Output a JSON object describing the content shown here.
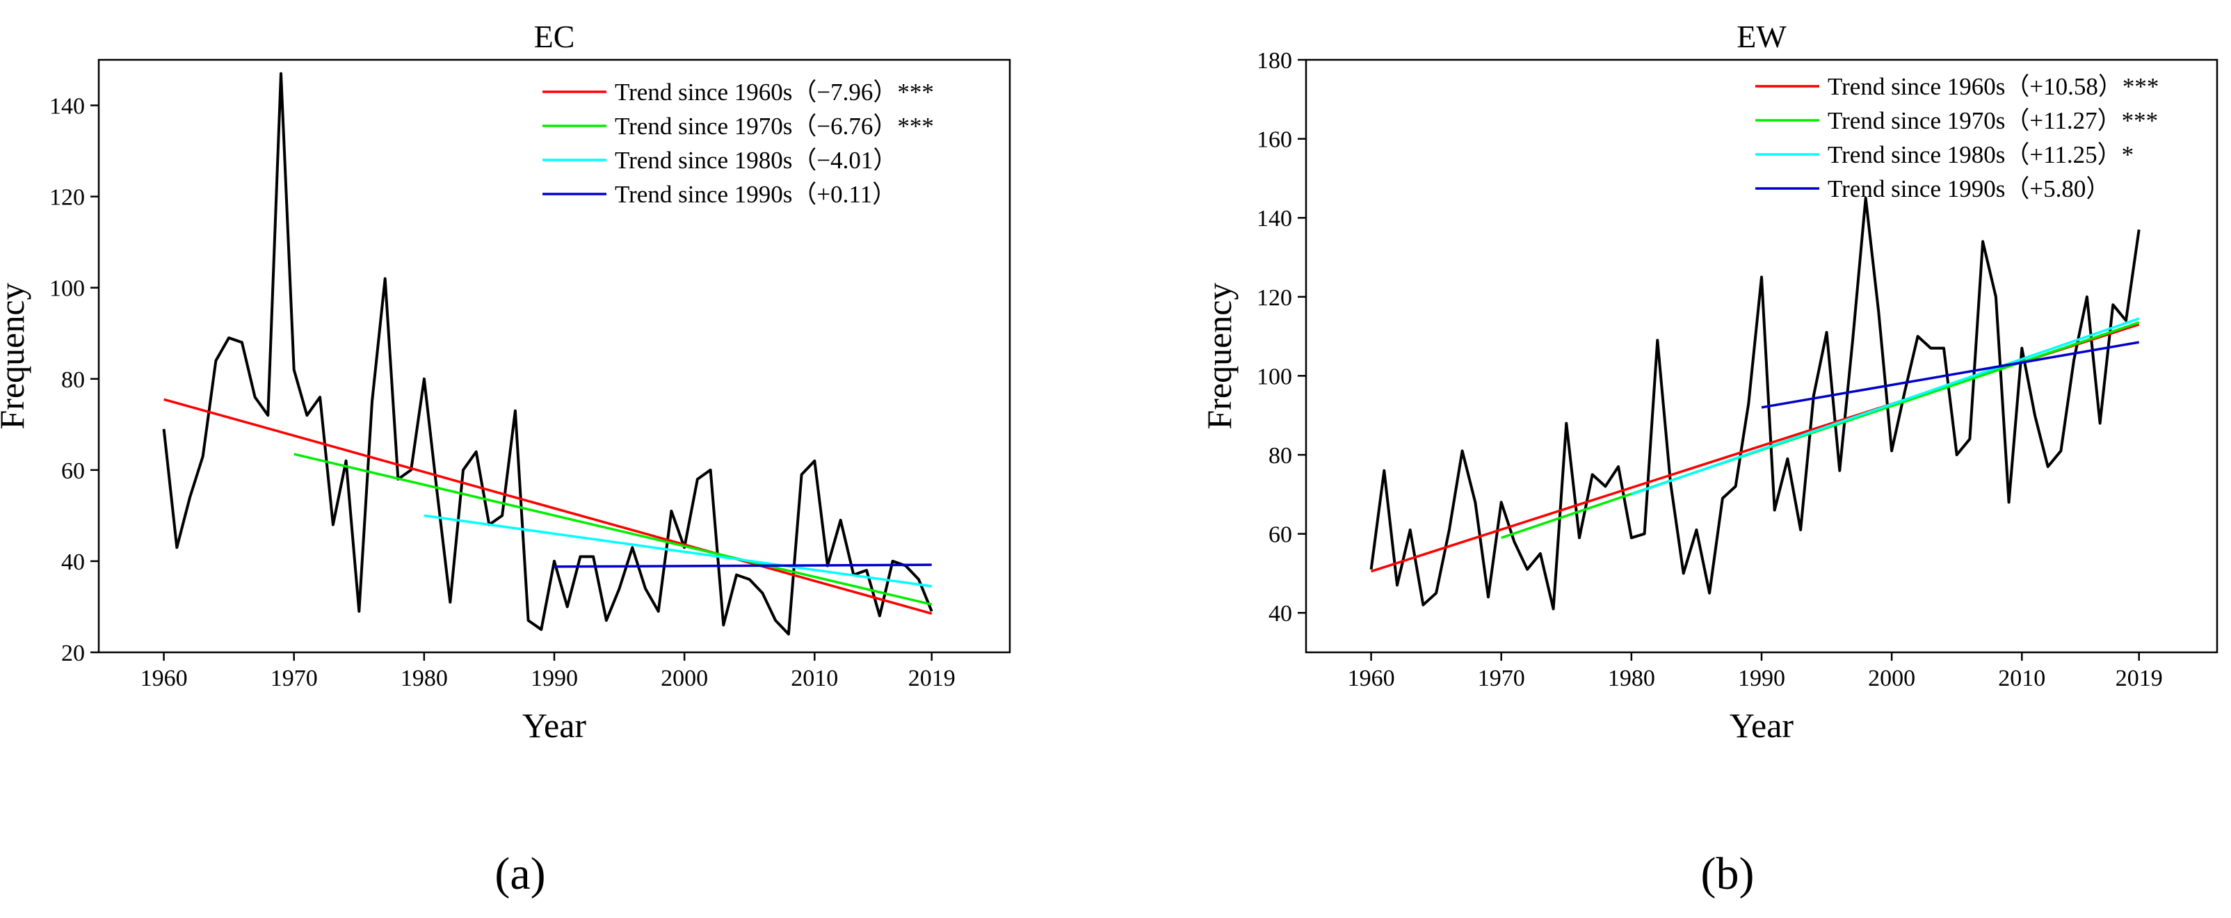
{
  "chart_data": [
    {
      "type": "line",
      "panel_label": "(a)",
      "title": "EC",
      "xlabel": "Year",
      "ylabel": "Frequency",
      "xlim": [
        1955,
        2025
      ],
      "ylim": [
        20,
        150
      ],
      "xticks": [
        1960,
        1970,
        1980,
        1990,
        2000,
        2010,
        2019
      ],
      "yticks": [
        20,
        40,
        60,
        80,
        100,
        120,
        140
      ],
      "legend_position": "top-right",
      "series": {
        "name": "Frequency",
        "color": "#000000",
        "x": [
          1960,
          1961,
          1962,
          1963,
          1964,
          1965,
          1966,
          1967,
          1968,
          1969,
          1970,
          1971,
          1972,
          1973,
          1974,
          1975,
          1976,
          1977,
          1978,
          1979,
          1980,
          1981,
          1982,
          1983,
          1984,
          1985,
          1986,
          1987,
          1988,
          1989,
          1990,
          1991,
          1992,
          1993,
          1994,
          1995,
          1996,
          1997,
          1998,
          1999,
          2000,
          2001,
          2002,
          2003,
          2004,
          2005,
          2006,
          2007,
          2008,
          2009,
          2010,
          2011,
          2012,
          2013,
          2014,
          2015,
          2016,
          2017,
          2018,
          2019
        ],
        "y": [
          69,
          43,
          54,
          63,
          84,
          89,
          88,
          76,
          72,
          147,
          82,
          72,
          76,
          48,
          62,
          29,
          75,
          102,
          58,
          60,
          80,
          55,
          31,
          60,
          64,
          48,
          50,
          73,
          27,
          25,
          40,
          30,
          41,
          41,
          27,
          34,
          43,
          34,
          29,
          51,
          43,
          58,
          60,
          26,
          37,
          36,
          33,
          27,
          24,
          59,
          62,
          39,
          49,
          37,
          38,
          28,
          40,
          39,
          36,
          29
        ]
      },
      "trends": [
        {
          "label": "Trend since 1960s（−7.96）***",
          "color": "#ff0000",
          "x": [
            1960,
            2019
          ],
          "y": [
            75.5,
            28.5
          ]
        },
        {
          "label": "Trend since 1970s（−6.76）***",
          "color": "#00ee00",
          "x": [
            1970,
            2019
          ],
          "y": [
            63.5,
            30.5
          ]
        },
        {
          "label": "Trend since 1980s（−4.01）",
          "color": "#00ffff",
          "x": [
            1980,
            2019
          ],
          "y": [
            50.0,
            34.5
          ]
        },
        {
          "label": "Trend since 1990s（+0.11）",
          "color": "#0000cd",
          "x": [
            1990,
            2019
          ],
          "y": [
            38.8,
            39.2
          ]
        }
      ]
    },
    {
      "type": "line",
      "panel_label": "(b)",
      "title": "EW",
      "xlabel": "Year",
      "ylabel": "Frequency",
      "xlim": [
        1955,
        2025
      ],
      "ylim": [
        30,
        180
      ],
      "xticks": [
        1960,
        1970,
        1980,
        1990,
        2000,
        2010,
        2019
      ],
      "yticks": [
        40,
        60,
        80,
        100,
        120,
        140,
        160,
        180
      ],
      "legend_position": "top-right",
      "series": {
        "name": "Frequency",
        "color": "#000000",
        "x": [
          1960,
          1961,
          1962,
          1963,
          1964,
          1965,
          1966,
          1967,
          1968,
          1969,
          1970,
          1971,
          1972,
          1973,
          1974,
          1975,
          1976,
          1977,
          1978,
          1979,
          1980,
          1981,
          1982,
          1983,
          1984,
          1985,
          1986,
          1987,
          1988,
          1989,
          1990,
          1991,
          1992,
          1993,
          1994,
          1995,
          1996,
          1997,
          1998,
          1999,
          2000,
          2001,
          2002,
          2003,
          2004,
          2005,
          2006,
          2007,
          2008,
          2009,
          2010,
          2011,
          2012,
          2013,
          2014,
          2015,
          2016,
          2017,
          2018,
          2019
        ],
        "y": [
          51,
          76,
          47,
          61,
          42,
          45,
          61,
          81,
          68,
          44,
          68,
          58,
          51,
          55,
          41,
          88,
          59,
          75,
          72,
          77,
          59,
          60,
          109,
          73,
          50,
          61,
          45,
          69,
          72,
          93,
          125,
          66,
          79,
          61,
          95,
          111,
          76,
          109,
          145,
          116,
          81,
          96,
          110,
          107,
          107,
          80,
          84,
          134,
          120,
          68,
          107,
          90,
          77,
          81,
          104,
          120,
          88,
          118,
          114,
          137
        ]
      },
      "trends": [
        {
          "label": "Trend since 1960s（+10.58）***",
          "color": "#ff0000",
          "x": [
            1960,
            2019
          ],
          "y": [
            50.5,
            113.0
          ]
        },
        {
          "label": "Trend since 1970s（+11.27）***",
          "color": "#00ee00",
          "x": [
            1970,
            2019
          ],
          "y": [
            59.0,
            113.5
          ]
        },
        {
          "label": "Trend since 1980s（+11.25）*",
          "color": "#00ffff",
          "x": [
            1980,
            2019
          ],
          "y": [
            70.0,
            114.5
          ]
        },
        {
          "label": "Trend since 1990s（+5.80）",
          "color": "#0000cd",
          "x": [
            1990,
            2019
          ],
          "y": [
            92.0,
            108.5
          ]
        }
      ]
    }
  ]
}
